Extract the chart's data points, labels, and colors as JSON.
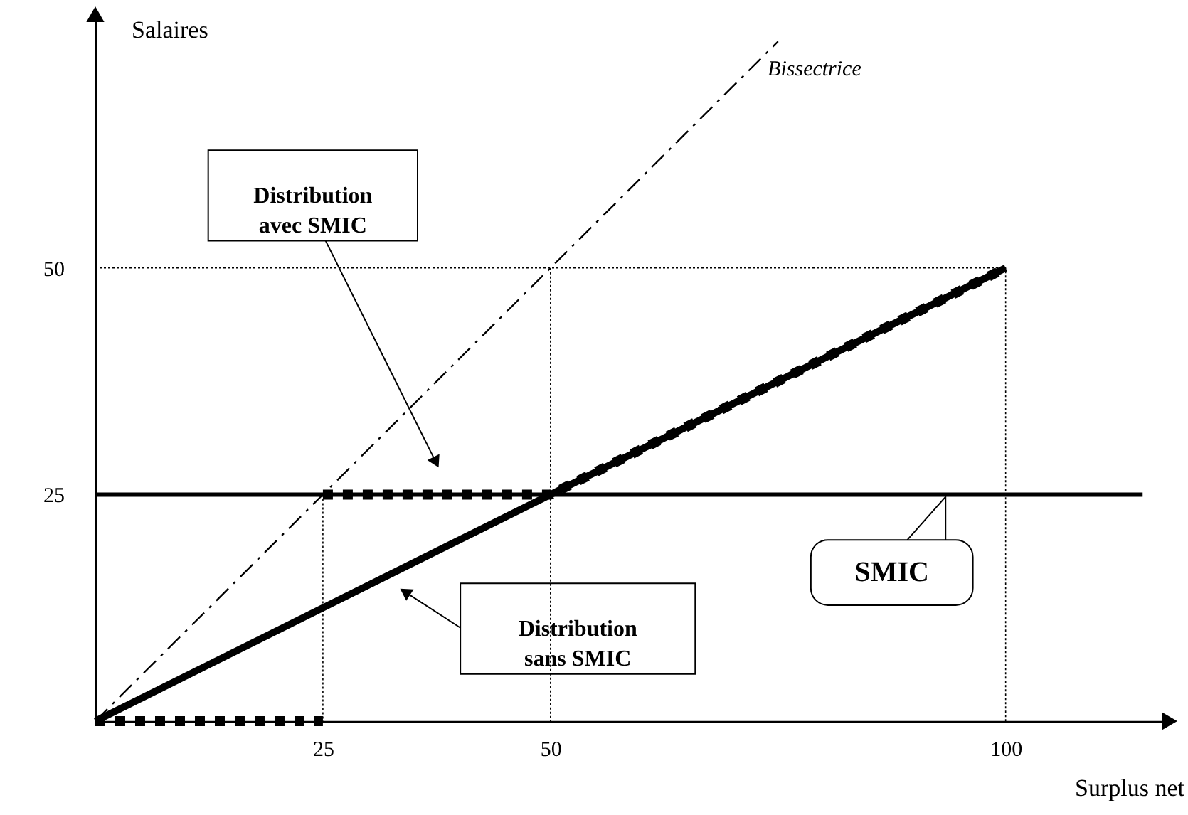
{
  "chart_data": {
    "type": "line",
    "xlabel": "Surplus net",
    "ylabel": "Salaires",
    "xlim": [
      0,
      118
    ],
    "ylim": [
      0,
      78
    ],
    "xticks": [
      25,
      50,
      100
    ],
    "yticks": [
      25,
      50
    ],
    "grid": false,
    "marker": "none",
    "series": [
      {
        "color": "#000000",
        "line_style": "dotted",
        "x": [
          0,
          100,
          100
        ],
        "values": [
          50,
          50,
          0
        ]
      },
      {
        "color": "#000000",
        "line_style": "dotted",
        "x": [
          50,
          50
        ],
        "values": [
          50,
          0
        ]
      },
      {
        "color": "#000000",
        "line_style": "dotted",
        "x": [
          25,
          25
        ],
        "values": [
          25,
          0
        ]
      },
      {
        "color": "#000000",
        "line_style": "dashed",
        "x": [
          0,
          75
        ],
        "values": [
          0,
          75
        ]
      },
      {
        "color": "#000000",
        "line_style": "solid",
        "x": [
          0,
          100
        ],
        "values": [
          0,
          50
        ]
      },
      {
        "color": "#000000",
        "line_style": "dotted",
        "x": [
          0,
          25
        ],
        "values": [
          0,
          0
        ]
      },
      {
        "color": "#000000",
        "line_style": "dotted",
        "x": [
          25,
          50,
          100
        ],
        "values": [
          25,
          25,
          50
        ]
      }
    ],
    "ref_lines": [
      {
        "axis": "y",
        "value": 25,
        "label": "SMIC",
        "color": "#000000",
        "line_style": "solid"
      }
    ],
    "annotations": [
      "Bissectrice",
      "Distribution avec SMIC",
      "Distribution sans SMIC"
    ]
  }
}
